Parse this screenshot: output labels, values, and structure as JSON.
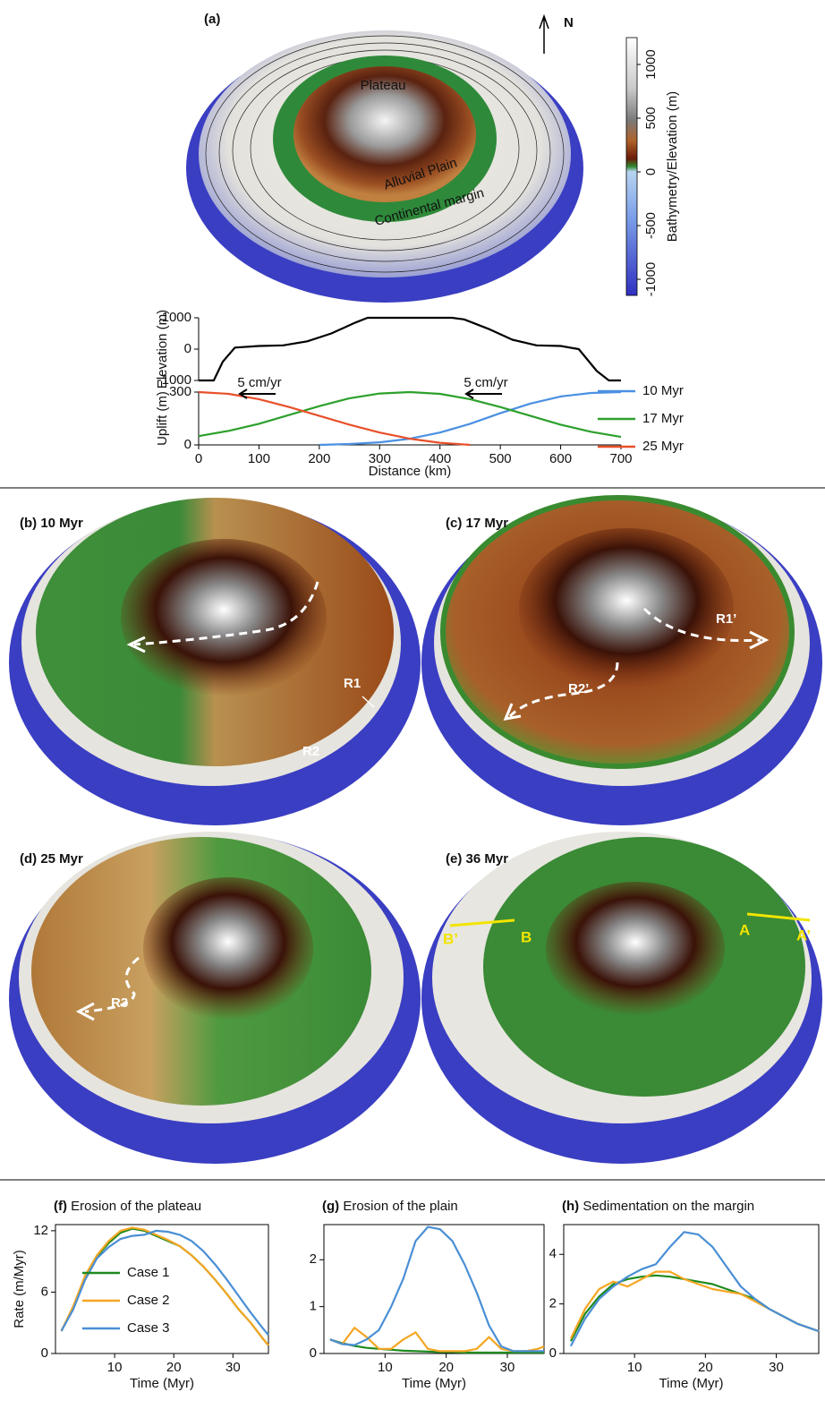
{
  "figure": {
    "panel_a": {
      "label": "(a)",
      "north": "N",
      "plateau": "Plateau",
      "plain": "Alluvial Plain",
      "margin": "Continental margin"
    },
    "colorbar": {
      "label": "Bathymetry/Elevation (m)",
      "lim": [
        -1150,
        1250
      ],
      "ticks": [
        1000,
        500,
        0,
        -500,
        -1000
      ]
    },
    "maps": [
      {
        "label": "(b) 10 Myr",
        "markers": [
          "R1",
          "R2"
        ]
      },
      {
        "label": "(c) 17 Myr",
        "markers": [
          "R1’",
          "R2’"
        ]
      },
      {
        "label": "(d) 25 Myr",
        "markers": [
          "R3"
        ]
      },
      {
        "label": "(e) 36 Myr",
        "markers": [
          "A",
          "A’",
          "B",
          "B’"
        ]
      }
    ]
  },
  "chart_data": [
    {
      "type": "line",
      "y_label": "Elevation (m)",
      "x": [
        0,
        25,
        40,
        60,
        100,
        140,
        180,
        220,
        260,
        280,
        420,
        440,
        480,
        520,
        560,
        600,
        630,
        660,
        680,
        700
      ],
      "series": [
        {
          "color": "#000000",
          "values": [
            -1000,
            -1000,
            -400,
            50,
            100,
            120,
            250,
            500,
            850,
            1000,
            1000,
            950,
            650,
            300,
            120,
            100,
            0,
            -700,
            -1000,
            -1000
          ]
        }
      ],
      "xlim": [
        0,
        700
      ],
      "ylim": [
        -1000,
        1000
      ],
      "yticks": [
        -1000,
        0,
        1000
      ]
    },
    {
      "type": "line",
      "y_label": "Uplift (m)",
      "x_label": "Distance (km)",
      "x": [
        0,
        50,
        100,
        150,
        200,
        250,
        300,
        350,
        400,
        450,
        500,
        550,
        600,
        650,
        700
      ],
      "series": [
        {
          "name": "10 Myr",
          "color": "#4a90e2",
          "values": [
            null,
            null,
            null,
            null,
            0,
            5,
            15,
            35,
            70,
            120,
            180,
            235,
            275,
            295,
            300
          ]
        },
        {
          "name": "17 Myr",
          "color": "#2ca02c",
          "values": [
            50,
            80,
            120,
            170,
            220,
            265,
            292,
            300,
            290,
            260,
            215,
            165,
            115,
            75,
            45
          ]
        },
        {
          "name": "25 Myr",
          "color": "#e8502a",
          "values": [
            300,
            290,
            260,
            215,
            165,
            115,
            70,
            35,
            12,
            0,
            null,
            null,
            null,
            null,
            null
          ]
        }
      ],
      "annotations": [
        "5 cm/yr",
        "5 cm/yr"
      ],
      "xlim": [
        0,
        700
      ],
      "ylim": [
        0,
        300
      ],
      "xticks": [
        0,
        100,
        200,
        300,
        400,
        500,
        600,
        700
      ],
      "yticks": [
        0,
        300
      ],
      "legend": "right"
    },
    {
      "type": "line",
      "panel": "(f)",
      "title": "Erosion of the plateau",
      "y_label": "Rate (m/Myr)",
      "x_label": "Time (Myr)",
      "x": [
        1,
        3,
        5,
        7,
        9,
        11,
        13,
        15,
        17,
        19,
        21,
        23,
        25,
        27,
        29,
        31,
        33,
        35,
        36
      ],
      "series": [
        {
          "name": "Case 1",
          "color": "#1e8a1e",
          "values": [
            2.2,
            4.5,
            7.5,
            9.5,
            10.8,
            11.8,
            12.2,
            12.0,
            11.5,
            11.0,
            10.5,
            9.6,
            8.5,
            7.2,
            5.8,
            4.3,
            3.0,
            1.5,
            0.8
          ]
        },
        {
          "name": "Case 2",
          "color": "#f5a623",
          "values": [
            2.2,
            4.6,
            7.6,
            9.6,
            11.0,
            12.0,
            12.3,
            12.1,
            11.6,
            11.1,
            10.5,
            9.6,
            8.5,
            7.2,
            5.8,
            4.3,
            3.0,
            1.5,
            0.8
          ]
        },
        {
          "name": "Case 3",
          "color": "#4a8fd4",
          "values": [
            2.2,
            4.3,
            7.2,
            9.3,
            10.4,
            11.2,
            11.5,
            11.6,
            12.0,
            11.9,
            11.6,
            11.0,
            10.0,
            8.7,
            7.2,
            5.6,
            4.0,
            2.5,
            1.8
          ]
        }
      ],
      "xlim": [
        0,
        36
      ],
      "ylim": [
        0,
        12.6
      ],
      "xticks": [
        10,
        20,
        30
      ],
      "yticks": [
        0,
        6,
        12
      ],
      "legend": "lower left"
    },
    {
      "type": "line",
      "panel": "(g)",
      "title": "Erosion of the plain",
      "x_label": "Time (Myr)",
      "x": [
        1,
        3,
        5,
        7,
        9,
        11,
        13,
        15,
        17,
        19,
        21,
        23,
        25,
        27,
        29,
        31,
        33,
        35,
        36
      ],
      "series": [
        {
          "color": "#1e8a1e",
          "values": [
            0.3,
            0.22,
            0.16,
            0.12,
            0.1,
            0.08,
            0.06,
            0.05,
            0.04,
            0.03,
            0.03,
            0.02,
            0.02,
            0.02,
            0.02,
            0.02,
            0.02,
            0.02,
            0.02
          ]
        },
        {
          "color": "#f5a623",
          "values": [
            0.3,
            0.2,
            0.55,
            0.35,
            0.1,
            0.1,
            0.3,
            0.45,
            0.1,
            0.05,
            0.05,
            0.05,
            0.1,
            0.35,
            0.1,
            0.05,
            0.05,
            0.1,
            0.15
          ]
        },
        {
          "color": "#4a8fd4",
          "values": [
            0.3,
            0.2,
            0.18,
            0.3,
            0.5,
            1.0,
            1.6,
            2.4,
            2.7,
            2.65,
            2.4,
            1.9,
            1.3,
            0.6,
            0.15,
            0.05,
            0.05,
            0.05,
            0.05
          ]
        }
      ],
      "xlim": [
        0,
        36
      ],
      "ylim": [
        0,
        2.75
      ],
      "xticks": [
        10,
        20,
        30
      ],
      "yticks": [
        0,
        1,
        2
      ]
    },
    {
      "type": "line",
      "panel": "(h)",
      "title": "Sedimentation on the margin",
      "x_label": "Time (Myr)",
      "x": [
        1,
        3,
        5,
        7,
        9,
        11,
        13,
        15,
        17,
        19,
        21,
        23,
        25,
        27,
        29,
        31,
        33,
        35,
        36
      ],
      "series": [
        {
          "color": "#1e8a1e",
          "values": [
            0.5,
            1.6,
            2.3,
            2.8,
            3.0,
            3.1,
            3.15,
            3.1,
            3.0,
            2.9,
            2.8,
            2.6,
            2.4,
            2.2,
            1.8,
            1.5,
            1.2,
            1.0,
            0.9
          ]
        },
        {
          "color": "#f5a623",
          "values": [
            0.6,
            1.8,
            2.6,
            2.9,
            2.7,
            3.0,
            3.3,
            3.3,
            3.0,
            2.8,
            2.6,
            2.5,
            2.4,
            2.1,
            1.8,
            1.5,
            1.2,
            1.0,
            0.9
          ]
        },
        {
          "color": "#4a8fd4",
          "values": [
            0.3,
            1.4,
            2.2,
            2.7,
            3.1,
            3.4,
            3.6,
            4.3,
            4.9,
            4.8,
            4.3,
            3.5,
            2.7,
            2.2,
            1.8,
            1.5,
            1.2,
            1.0,
            0.9
          ]
        }
      ],
      "xlim": [
        0,
        36
      ],
      "ylim": [
        0,
        5.2
      ],
      "xticks": [
        10,
        20,
        30
      ],
      "yticks": [
        0,
        2,
        4
      ]
    }
  ]
}
